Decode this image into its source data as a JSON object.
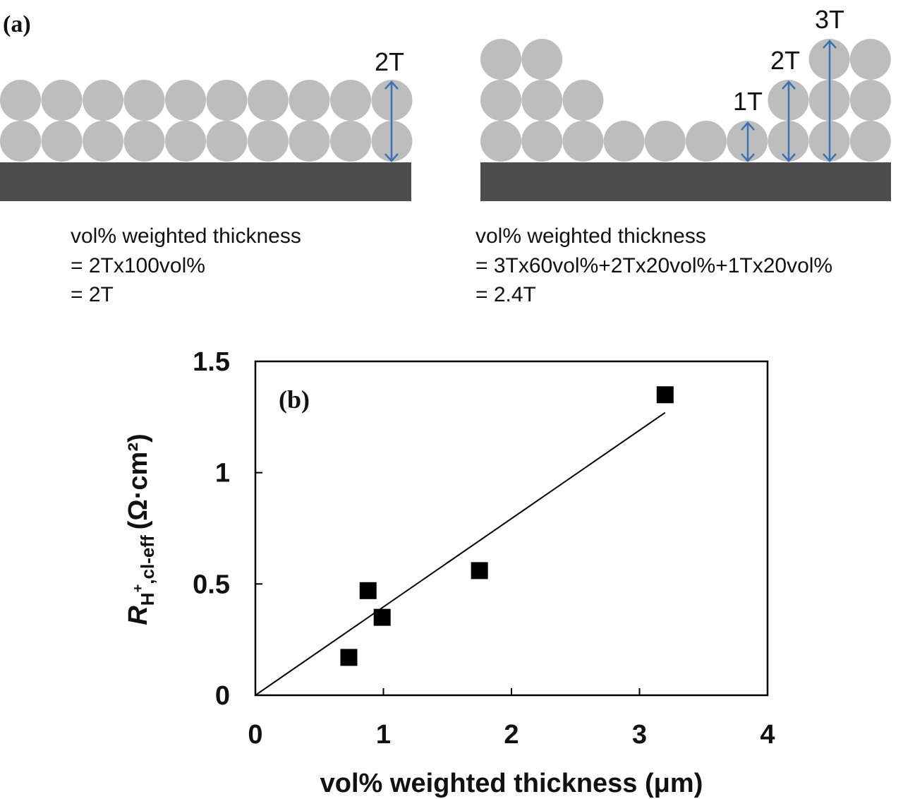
{
  "panel_a": {
    "label": "(a)",
    "left": {
      "arrow_label": "2T",
      "lines": [
        "vol% weighted thickness",
        "= 2Tx100vol%",
        "= 2T"
      ]
    },
    "right": {
      "arrow_labels": [
        "1T",
        "2T",
        "3T"
      ],
      "lines": [
        "vol% weighted thickness",
        "= 3Tx60vol%+2Tx20vol%+1Tx20vol%",
        "= 2.4T"
      ]
    }
  },
  "chart_data": {
    "type": "scatter",
    "panel_label": "(b)",
    "x_label": "vol% weighted thickness (μm)",
    "y_label": {
      "symbol": "R",
      "subscript": "H",
      "superscript": "+",
      "subscript_rest": ",cl-eff",
      "unit": "(Ω·cm²)"
    },
    "x": [
      0.73,
      0.88,
      0.99,
      1.75,
      3.2
    ],
    "values": [
      0.17,
      0.47,
      0.35,
      0.56,
      1.35
    ],
    "color": "#000000",
    "fit": {
      "x": [
        0,
        3.2
      ],
      "values": [
        0,
        1.27
      ],
      "color": "#000000"
    },
    "xlim": [
      0,
      4
    ],
    "ylim": [
      0,
      1.5
    ],
    "xticks": [
      0,
      1,
      2,
      3,
      4
    ],
    "yticks": [
      0,
      0.5,
      1,
      1.5
    ]
  }
}
